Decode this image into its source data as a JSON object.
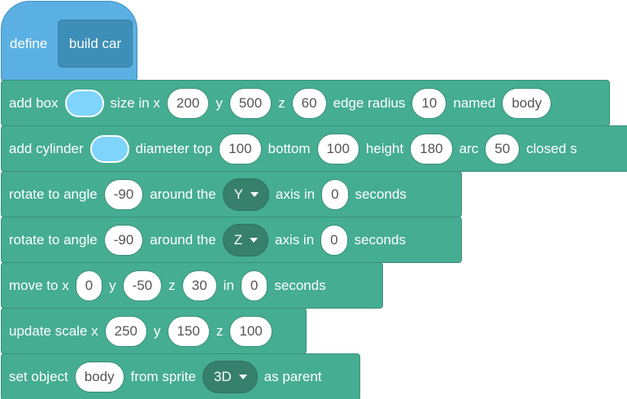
{
  "colors": {
    "hat": "#5bb0e3",
    "prototype": "#3e8fb8",
    "block": "#45ad92",
    "dropdown": "#37806c",
    "swatch": "#7fd4fb"
  },
  "hat": {
    "label": "define",
    "prototype": "build car"
  },
  "blocks": [
    {
      "name": "add-box",
      "parts": [
        {
          "kind": "text",
          "value": "add box"
        },
        {
          "kind": "color",
          "value": "#7fd4fb"
        },
        {
          "kind": "text",
          "value": "size in x"
        },
        {
          "kind": "input",
          "value": "200"
        },
        {
          "kind": "text",
          "value": "y"
        },
        {
          "kind": "input",
          "value": "500"
        },
        {
          "kind": "text",
          "value": "z"
        },
        {
          "kind": "input",
          "value": "60"
        },
        {
          "kind": "text",
          "value": "edge radius"
        },
        {
          "kind": "input",
          "value": "10"
        },
        {
          "kind": "text",
          "value": "named"
        },
        {
          "kind": "input",
          "value": "body"
        }
      ]
    },
    {
      "name": "add-cylinder",
      "parts": [
        {
          "kind": "text",
          "value": "add cylinder"
        },
        {
          "kind": "color",
          "value": "#7fd4fb"
        },
        {
          "kind": "text",
          "value": "diameter top"
        },
        {
          "kind": "input",
          "value": "100"
        },
        {
          "kind": "text",
          "value": "bottom"
        },
        {
          "kind": "input",
          "value": "100"
        },
        {
          "kind": "text",
          "value": "height"
        },
        {
          "kind": "input",
          "value": "180"
        },
        {
          "kind": "text",
          "value": "arc"
        },
        {
          "kind": "input",
          "value": "50"
        },
        {
          "kind": "text",
          "value": "closed s"
        }
      ]
    },
    {
      "name": "rotate-to-angle-y",
      "parts": [
        {
          "kind": "text",
          "value": "rotate to angle"
        },
        {
          "kind": "input",
          "value": "-90"
        },
        {
          "kind": "text",
          "value": "around the"
        },
        {
          "kind": "dropdown",
          "value": "Y"
        },
        {
          "kind": "text",
          "value": "axis in"
        },
        {
          "kind": "input",
          "value": "0"
        },
        {
          "kind": "text",
          "value": "seconds"
        }
      ]
    },
    {
      "name": "rotate-to-angle-z",
      "parts": [
        {
          "kind": "text",
          "value": "rotate to angle"
        },
        {
          "kind": "input",
          "value": "-90"
        },
        {
          "kind": "text",
          "value": "around the"
        },
        {
          "kind": "dropdown",
          "value": "Z"
        },
        {
          "kind": "text",
          "value": "axis in"
        },
        {
          "kind": "input",
          "value": "0"
        },
        {
          "kind": "text",
          "value": "seconds"
        }
      ]
    },
    {
      "name": "move-to",
      "parts": [
        {
          "kind": "text",
          "value": "move to x"
        },
        {
          "kind": "input",
          "value": "0"
        },
        {
          "kind": "text",
          "value": "y"
        },
        {
          "kind": "input",
          "value": "-50"
        },
        {
          "kind": "text",
          "value": "z"
        },
        {
          "kind": "input",
          "value": "30"
        },
        {
          "kind": "text",
          "value": "in"
        },
        {
          "kind": "input",
          "value": "0"
        },
        {
          "kind": "text",
          "value": "seconds"
        }
      ]
    },
    {
      "name": "update-scale",
      "parts": [
        {
          "kind": "text",
          "value": "update scale x"
        },
        {
          "kind": "input",
          "value": "250"
        },
        {
          "kind": "text",
          "value": "y"
        },
        {
          "kind": "input",
          "value": "150"
        },
        {
          "kind": "text",
          "value": "z"
        },
        {
          "kind": "input",
          "value": "100"
        }
      ]
    },
    {
      "name": "set-object-parent",
      "parts": [
        {
          "kind": "text",
          "value": "set object"
        },
        {
          "kind": "input",
          "value": "body"
        },
        {
          "kind": "text",
          "value": "from sprite"
        },
        {
          "kind": "dropdown",
          "value": "3D"
        },
        {
          "kind": "text",
          "value": "as parent"
        }
      ]
    }
  ]
}
